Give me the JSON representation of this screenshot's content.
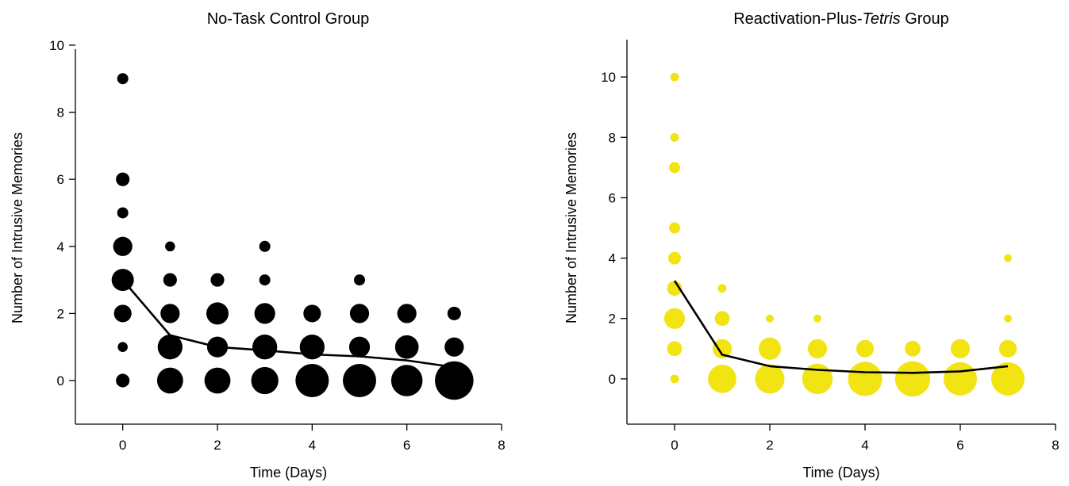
{
  "chart_data": [
    {
      "type": "scatter",
      "title": "No-Task Control Group",
      "title_parts": [
        {
          "text": "No-Task Control Group",
          "italic": false
        }
      ],
      "xlabel": "Time (Days)",
      "ylabel": "Number of Intrusive Memories",
      "xlim": [
        -1,
        8
      ],
      "ylim": [
        -1.3,
        10.4
      ],
      "xticks": [
        0,
        2,
        4,
        6,
        8
      ],
      "yticks": [
        0,
        2,
        4,
        6,
        8,
        10
      ],
      "marker_color": "#000000",
      "marker_size_meaning": "number of participants",
      "points": [
        {
          "x": 0,
          "y": 9,
          "n": 1
        },
        {
          "x": 0,
          "y": 6,
          "n": 1.5
        },
        {
          "x": 0,
          "y": 5,
          "n": 1
        },
        {
          "x": 0,
          "y": 4,
          "n": 3
        },
        {
          "x": 0,
          "y": 3,
          "n": 4
        },
        {
          "x": 0,
          "y": 2,
          "n": 2.5
        },
        {
          "x": 0,
          "y": 1,
          "n": 0.8
        },
        {
          "x": 0,
          "y": 0,
          "n": 1.5
        },
        {
          "x": 1,
          "y": 4,
          "n": 0.8
        },
        {
          "x": 1,
          "y": 3,
          "n": 1.5
        },
        {
          "x": 1,
          "y": 2,
          "n": 3
        },
        {
          "x": 1,
          "y": 1,
          "n": 5
        },
        {
          "x": 1,
          "y": 0,
          "n": 5.5
        },
        {
          "x": 2,
          "y": 3,
          "n": 1.5
        },
        {
          "x": 2,
          "y": 2,
          "n": 4
        },
        {
          "x": 2,
          "y": 1,
          "n": 3.5
        },
        {
          "x": 2,
          "y": 0,
          "n": 5.5
        },
        {
          "x": 3,
          "y": 4,
          "n": 1
        },
        {
          "x": 3,
          "y": 3,
          "n": 1
        },
        {
          "x": 3,
          "y": 2,
          "n": 3.5
        },
        {
          "x": 3,
          "y": 1,
          "n": 5
        },
        {
          "x": 3,
          "y": 0,
          "n": 6
        },
        {
          "x": 4,
          "y": 2,
          "n": 2.5
        },
        {
          "x": 4,
          "y": 1,
          "n": 5
        },
        {
          "x": 4,
          "y": 0,
          "n": 9
        },
        {
          "x": 5,
          "y": 3,
          "n": 1
        },
        {
          "x": 5,
          "y": 2,
          "n": 3
        },
        {
          "x": 5,
          "y": 1,
          "n": 3.5
        },
        {
          "x": 5,
          "y": 0,
          "n": 9
        },
        {
          "x": 6,
          "y": 2,
          "n": 3
        },
        {
          "x": 6,
          "y": 1,
          "n": 4.5
        },
        {
          "x": 6,
          "y": 0,
          "n": 8
        },
        {
          "x": 7,
          "y": 2,
          "n": 1.5
        },
        {
          "x": 7,
          "y": 1,
          "n": 3
        },
        {
          "x": 7,
          "y": 0,
          "n": 12
        }
      ],
      "mean_line": {
        "x": [
          0,
          1,
          2,
          3,
          4,
          5,
          6,
          7
        ],
        "y": [
          3.0,
          1.35,
          1.0,
          0.9,
          0.78,
          0.72,
          0.6,
          0.4
        ]
      }
    },
    {
      "type": "scatter",
      "title": "Reactivation-Plus-Tetris Group",
      "title_parts": [
        {
          "text": "Reactivation-Plus-",
          "italic": false
        },
        {
          "text": "Tetris",
          "italic": true
        },
        {
          "text": " Group",
          "italic": false
        }
      ],
      "xlabel": "Time (Days)",
      "ylabel": "Number of Intrusive Memories",
      "xlim": [
        -1,
        8
      ],
      "ylim": [
        -1.5,
        11.5
      ],
      "xticks": [
        0,
        2,
        4,
        6,
        8
      ],
      "yticks": [
        0,
        2,
        4,
        6,
        8,
        10
      ],
      "marker_color": "#f2e313",
      "marker_size_meaning": "number of participants",
      "points": [
        {
          "x": 0,
          "y": 10,
          "n": 0.6
        },
        {
          "x": 0,
          "y": 8,
          "n": 0.6
        },
        {
          "x": 0,
          "y": 7,
          "n": 1
        },
        {
          "x": 0,
          "y": 5,
          "n": 1
        },
        {
          "x": 0,
          "y": 4,
          "n": 1.3
        },
        {
          "x": 0,
          "y": 3,
          "n": 1.8
        },
        {
          "x": 0,
          "y": 2,
          "n": 3.5
        },
        {
          "x": 0,
          "y": 1,
          "n": 1.8
        },
        {
          "x": 0,
          "y": 0,
          "n": 0.6
        },
        {
          "x": 1,
          "y": 3,
          "n": 0.6
        },
        {
          "x": 1,
          "y": 2,
          "n": 1.8
        },
        {
          "x": 1,
          "y": 1,
          "n": 3
        },
        {
          "x": 1,
          "y": 0,
          "n": 6.5
        },
        {
          "x": 2,
          "y": 2,
          "n": 0.5
        },
        {
          "x": 2,
          "y": 1,
          "n": 4
        },
        {
          "x": 2,
          "y": 0,
          "n": 7
        },
        {
          "x": 3,
          "y": 2,
          "n": 0.5
        },
        {
          "x": 3,
          "y": 1,
          "n": 3
        },
        {
          "x": 3,
          "y": 0,
          "n": 7.5
        },
        {
          "x": 4,
          "y": 1,
          "n": 2.5
        },
        {
          "x": 4,
          "y": 0,
          "n": 9.5
        },
        {
          "x": 5,
          "y": 1,
          "n": 2
        },
        {
          "x": 5,
          "y": 0,
          "n": 10
        },
        {
          "x": 6,
          "y": 1,
          "n": 3
        },
        {
          "x": 6,
          "y": 0,
          "n": 9
        },
        {
          "x": 7,
          "y": 4,
          "n": 0.5
        },
        {
          "x": 7,
          "y": 2,
          "n": 0.5
        },
        {
          "x": 7,
          "y": 1,
          "n": 2.5
        },
        {
          "x": 7,
          "y": 0,
          "n": 9
        }
      ],
      "mean_line": {
        "x": [
          0,
          1,
          2,
          3,
          4,
          5,
          6,
          7
        ],
        "y": [
          3.25,
          0.8,
          0.42,
          0.3,
          0.22,
          0.2,
          0.25,
          0.42
        ]
      }
    }
  ]
}
